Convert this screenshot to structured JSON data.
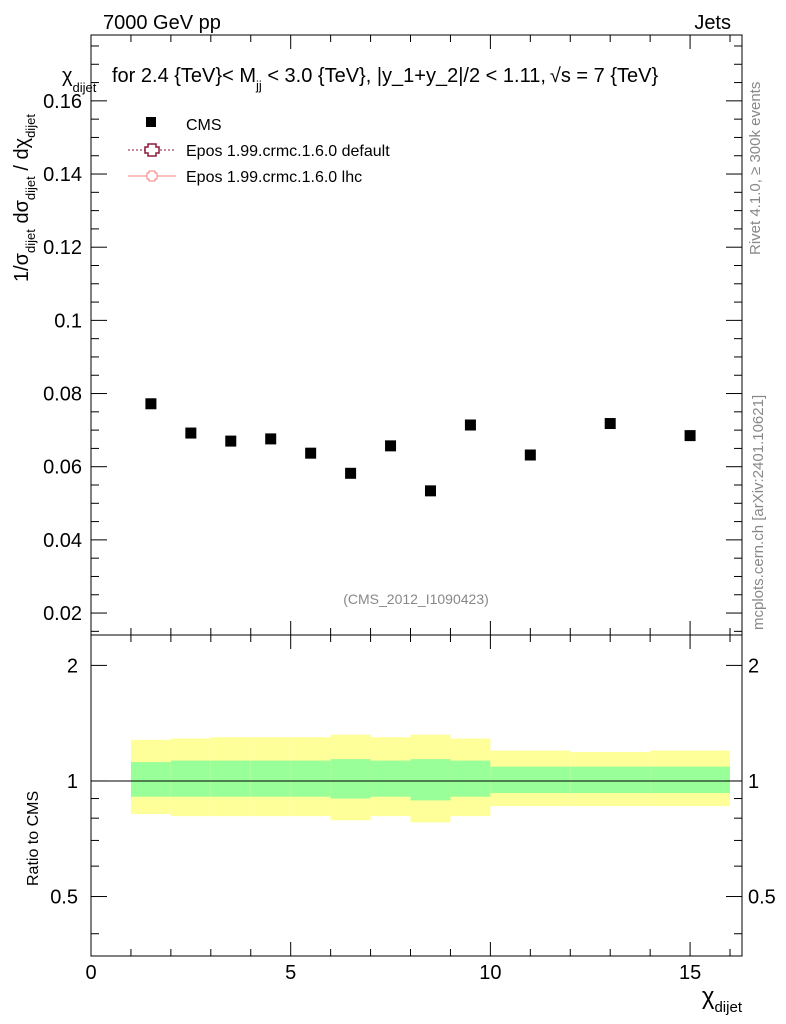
{
  "header": {
    "left": "7000 GeV pp",
    "right": "Jets"
  },
  "side": {
    "rivet": "Rivet 4.1.0, ≥ 300k events",
    "mcplots": "mcplots.cern.ch [arXiv:2401.10621]"
  },
  "watermark": "(CMS_2012_I1090423)",
  "colors": {
    "data": "#000000",
    "mc_default": "#8b1a3a",
    "mc_lhc": "#f08080",
    "band_inner": "#99ff99",
    "band_outer": "#ffff99"
  },
  "chart_data": [
    {
      "type": "scatter",
      "panel": "main",
      "title": {
        "prefix": "for 2.4 {TeV}< M",
        "prefix_sub": "jj",
        "rest": " < 3.0 {TeV}, |y_1+y_2|/2 < 1.11,",
        "sqrt": "√s",
        "tail": " = 7 {TeV}"
      },
      "ylabel": {
        "a": "1/σ",
        "a_sub": "dijet",
        "b": " dσ",
        "b_sub": "dijet",
        "c": " / dχ",
        "c_sub": "dijet"
      },
      "ylabel_chi": "χ",
      "ylabel_chi_sub": "dijet",
      "xlim": [
        0,
        16.3
      ],
      "ylim": [
        0.014,
        0.178
      ],
      "yticks": [
        {
          "v": 0.02,
          "label": "0.02"
        },
        {
          "v": 0.04,
          "label": "0.04"
        },
        {
          "v": 0.06,
          "label": "0.06"
        },
        {
          "v": 0.08,
          "label": "0.08"
        },
        {
          "v": 0.1,
          "label": "0.1"
        },
        {
          "v": 0.12,
          "label": "0.12"
        },
        {
          "v": 0.14,
          "label": "0.14"
        },
        {
          "v": 0.16,
          "label": "0.16"
        }
      ],
      "legend": [
        {
          "label": "CMS",
          "style": "data"
        },
        {
          "label": "Epos 1.99.crmc.1.6.0 default",
          "style": "mc_default"
        },
        {
          "label": "Epos 1.99.crmc.1.6.0 lhc",
          "style": "mc_lhc"
        }
      ],
      "series": [
        {
          "name": "CMS",
          "x": [
            1.5,
            2.5,
            3.5,
            4.5,
            5.5,
            6.5,
            7.5,
            8.5,
            9.5,
            11.0,
            13.0,
            15.0
          ],
          "y": [
            0.0772,
            0.0692,
            0.067,
            0.0676,
            0.0637,
            0.0582,
            0.0657,
            0.0534,
            0.0714,
            0.0632,
            0.0718,
            0.0685
          ]
        }
      ]
    },
    {
      "type": "area",
      "panel": "ratio",
      "ylabel": "Ratio to CMS",
      "xlabel": "χ",
      "xlabel_sub": "dijet",
      "xlim": [
        0,
        16.3
      ],
      "ylim": [
        0.35,
        2.4
      ],
      "log_y": true,
      "yticks": [
        {
          "v": 0.5,
          "label": "0.5"
        },
        {
          "v": 1,
          "label": "1"
        },
        {
          "v": 2,
          "label": "2"
        }
      ],
      "xticks": [
        {
          "v": 0,
          "label": "0"
        },
        {
          "v": 5,
          "label": "5"
        },
        {
          "v": 10,
          "label": "10"
        },
        {
          "v": 15,
          "label": "15"
        }
      ],
      "bins": [
        {
          "lo": 1,
          "hi": 2,
          "inner": [
            0.91,
            1.12
          ],
          "outer": [
            0.82,
            1.28
          ]
        },
        {
          "lo": 2,
          "hi": 3,
          "inner": [
            0.91,
            1.13
          ],
          "outer": [
            0.81,
            1.29
          ]
        },
        {
          "lo": 3,
          "hi": 4,
          "inner": [
            0.91,
            1.13
          ],
          "outer": [
            0.81,
            1.3
          ]
        },
        {
          "lo": 4,
          "hi": 5,
          "inner": [
            0.91,
            1.13
          ],
          "outer": [
            0.81,
            1.3
          ]
        },
        {
          "lo": 5,
          "hi": 6,
          "inner": [
            0.91,
            1.13
          ],
          "outer": [
            0.81,
            1.3
          ]
        },
        {
          "lo": 6,
          "hi": 7,
          "inner": [
            0.9,
            1.14
          ],
          "outer": [
            0.79,
            1.32
          ]
        },
        {
          "lo": 7,
          "hi": 8,
          "inner": [
            0.91,
            1.13
          ],
          "outer": [
            0.81,
            1.3
          ]
        },
        {
          "lo": 8,
          "hi": 9,
          "inner": [
            0.89,
            1.14
          ],
          "outer": [
            0.78,
            1.32
          ]
        },
        {
          "lo": 9,
          "hi": 10,
          "inner": [
            0.91,
            1.13
          ],
          "outer": [
            0.81,
            1.29
          ]
        },
        {
          "lo": 10,
          "hi": 12,
          "inner": [
            0.93,
            1.09
          ],
          "outer": [
            0.86,
            1.2
          ]
        },
        {
          "lo": 12,
          "hi": 14,
          "inner": [
            0.93,
            1.09
          ],
          "outer": [
            0.86,
            1.19
          ]
        },
        {
          "lo": 14,
          "hi": 16,
          "inner": [
            0.93,
            1.09
          ],
          "outer": [
            0.86,
            1.2
          ]
        }
      ],
      "reference": 1
    }
  ]
}
